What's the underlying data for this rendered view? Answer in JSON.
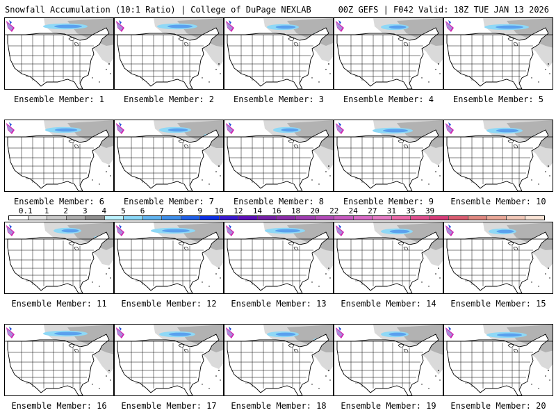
{
  "header": {
    "title_left": "Snowfall Accumulation (10:1 Ratio) | College of DuPage NEXLAB",
    "title_right": "00Z GEFS | F042 Valid: 18Z TUE JAN 13 2026"
  },
  "panels": [
    {
      "label": "Ensemble Member: 1"
    },
    {
      "label": "Ensemble Member: 2"
    },
    {
      "label": "Ensemble Member: 3"
    },
    {
      "label": "Ensemble Member: 4"
    },
    {
      "label": "Ensemble Member: 5"
    },
    {
      "label": "Ensemble Member: 6"
    },
    {
      "label": "Ensemble Member: 7"
    },
    {
      "label": "Ensemble Member: 8"
    },
    {
      "label": "Ensemble Member: 9"
    },
    {
      "label": "Ensemble Member: 10"
    },
    {
      "label": "Ensemble Member: 11"
    },
    {
      "label": "Ensemble Member: 12"
    },
    {
      "label": "Ensemble Member: 13"
    },
    {
      "label": "Ensemble Member: 14"
    },
    {
      "label": "Ensemble Member: 15"
    },
    {
      "label": "Ensemble Member: 16"
    },
    {
      "label": "Ensemble Member: 17"
    },
    {
      "label": "Ensemble Member: 18"
    },
    {
      "label": "Ensemble Member: 19"
    },
    {
      "label": "Ensemble Member: 20"
    }
  ],
  "colorbar": {
    "labels": [
      "0.1",
      "1",
      "2",
      "3",
      "4",
      "5",
      "6",
      "7",
      "8",
      "9",
      "10",
      "12",
      "14",
      "16",
      "18",
      "20",
      "22",
      "24",
      "27",
      "31",
      "35",
      "39"
    ],
    "colors": [
      "#ffffff",
      "#e3e3e3",
      "#c9c9c9",
      "#adadad",
      "#8f8f8f",
      "#bdf3ff",
      "#8ad8f8",
      "#61b4f0",
      "#3f8fea",
      "#2060e8",
      "#0c30e6",
      "#3a1ad0",
      "#5c10b8",
      "#7420a6",
      "#8a2ca8",
      "#9e3cb0",
      "#b24ab8",
      "#c65ac0",
      "#d86ac6",
      "#e47cc4",
      "#ea6aa8",
      "#e0508e",
      "#d63c78",
      "#d95c70",
      "#e08880",
      "#eaa898",
      "#f2c8b8",
      "#fae4d6"
    ]
  },
  "colors": {
    "land_snow_light": "#d8d8d8",
    "land_snow_mid": "#a8a8a8",
    "snow_blue_light": "#8ed8f6",
    "snow_blue": "#5aa0ee",
    "snow_blue_dark": "#2650d8",
    "snow_magenta": "#d020b0",
    "borders": "#000000"
  }
}
